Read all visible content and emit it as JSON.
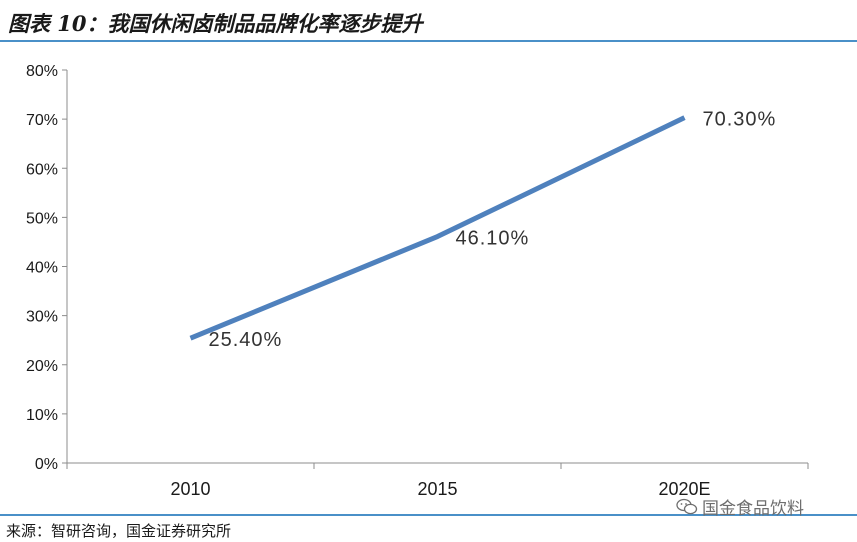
{
  "header": {
    "title": "图表 10：我国休闲卤制品品牌化率逐步提升"
  },
  "footer": {
    "source": "来源：智研咨询，国金证券研究所"
  },
  "watermark": {
    "text": "国金食品饮料",
    "icon": "wechat-icon"
  },
  "chart_data": {
    "type": "line",
    "categories": [
      "2010",
      "2015",
      "2020E"
    ],
    "series": [
      {
        "values": [
          25.4,
          46.1,
          70.3
        ],
        "labels": [
          "25.40%",
          "46.10%",
          "70.30%"
        ],
        "color": "#4f81bd"
      }
    ],
    "yticks": [
      "0%",
      "10%",
      "20%",
      "30%",
      "40%",
      "50%",
      "60%",
      "70%",
      "80%"
    ],
    "ylim": [
      0,
      80
    ],
    "grid": false
  }
}
